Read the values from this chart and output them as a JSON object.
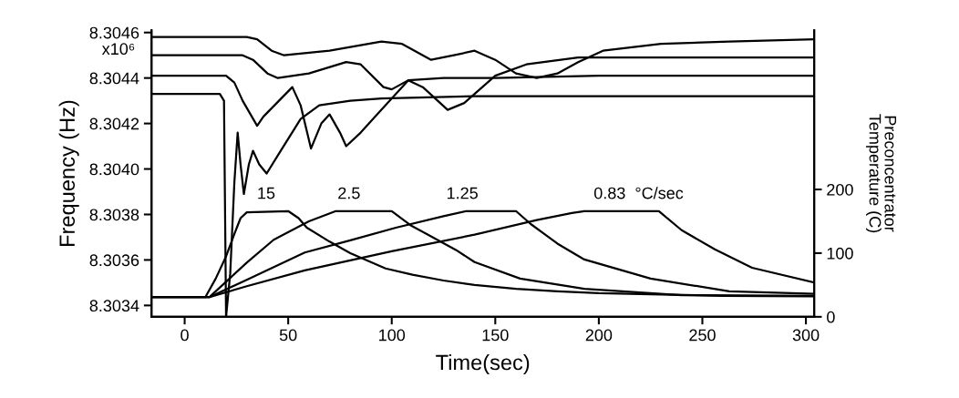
{
  "chart_data": {
    "type": "line",
    "xlabel": "Time(sec)",
    "ylabel": "Frequency (Hz)",
    "y2label": "Preconcentrator\nTemperature (C)",
    "xlim": [
      -16,
      304
    ],
    "xticks": [
      0,
      50,
      100,
      150,
      200,
      250,
      300
    ],
    "ylim": [
      8.30335,
      8.30461
    ],
    "yticks": [
      8.3034,
      8.3036,
      8.3038,
      {
        "value": 8.304,
        "label": "8.3040"
      },
      8.3042,
      8.3044,
      8.3046
    ],
    "y2lim": [
      0,
      450
    ],
    "y2ticks": [
      0,
      100,
      200
    ],
    "grid": false,
    "annotations": [
      "x10⁶",
      "15",
      "2.5",
      "1.25",
      "0.83  °C/sec"
    ],
    "series": [
      {
        "color": "#000000",
        "x": [
          -16,
          30,
          35,
          42,
          48,
          70,
          95,
          105,
          119,
          130,
          140,
          150,
          160,
          170,
          180,
          190,
          202,
          230,
          263,
          304
        ],
        "values": [
          8.30458,
          8.30458,
          8.30457,
          8.30452,
          8.3045,
          8.30452,
          8.30456,
          8.30455,
          8.30448,
          8.3045,
          8.30452,
          8.30448,
          8.30442,
          8.3044,
          8.30442,
          8.30447,
          8.30452,
          8.30455,
          8.30456,
          8.30457
        ]
      },
      {
        "color": "#000000",
        "x": [
          -16,
          28,
          33,
          40,
          45,
          60,
          78,
          85,
          96,
          100,
          108,
          115,
          127,
          135,
          150,
          165,
          190,
          250,
          304
        ],
        "values": [
          8.3045,
          8.3045,
          8.30448,
          8.30442,
          8.3044,
          8.30442,
          8.30447,
          8.30446,
          8.30436,
          8.30435,
          8.30439,
          8.30436,
          8.30426,
          8.30429,
          8.30441,
          8.30446,
          8.30449,
          8.30449,
          8.30449
        ]
      },
      {
        "color": "#000000",
        "x": [
          -16,
          20,
          24,
          28,
          35,
          38,
          52,
          56,
          61,
          66,
          70,
          75,
          78,
          85,
          95,
          108,
          125,
          150,
          200,
          304
        ],
        "values": [
          8.30441,
          8.30441,
          8.30438,
          8.3043,
          8.30419,
          8.30423,
          8.30436,
          8.30428,
          8.30409,
          8.3042,
          8.30424,
          8.30416,
          8.3041,
          8.30416,
          8.30426,
          8.30439,
          8.3044,
          8.3044,
          8.30441,
          8.30441
        ]
      },
      {
        "color": "#000000",
        "x": [
          -16,
          17,
          19,
          20,
          22,
          24,
          25.6,
          27,
          28.6,
          31,
          33,
          36,
          39.6,
          45,
          56,
          65,
          80,
          95,
          140,
          200,
          304
        ],
        "values": [
          8.30433,
          8.30433,
          8.3043,
          8.30335,
          8.30354,
          8.30394,
          8.30416,
          8.30402,
          8.30389,
          8.30402,
          8.30408,
          8.30402,
          8.30398,
          8.30406,
          8.30422,
          8.30428,
          8.3043,
          8.30431,
          8.30432,
          8.30432,
          8.30432
        ]
      },
      {
        "color": "#000000",
        "axis": "y2",
        "x": [
          -16,
          10,
          15,
          20,
          24,
          27,
          30,
          50,
          55,
          59,
          70,
          80,
          97,
          110,
          125,
          140,
          160,
          180,
          200,
          230,
          260,
          304
        ],
        "values": [
          31,
          31,
          60,
          95,
          130,
          155,
          164,
          166,
          155,
          140,
          118,
          100,
          76,
          66,
          57,
          50,
          44,
          40,
          37,
          35,
          33,
          32
        ]
      },
      {
        "color": "#000000",
        "axis": "y2",
        "x": [
          -16,
          12,
          20,
          30,
          43,
          60,
          73,
          100,
          109,
          131,
          140,
          162,
          193,
          240,
          304
        ],
        "values": [
          31,
          31,
          55,
          85,
          121,
          150,
          166,
          166,
          144,
          105,
          86,
          60,
          44,
          34,
          33
        ]
      },
      {
        "color": "#000000",
        "axis": "y2",
        "x": [
          -16,
          12,
          30,
          58,
          80,
          102,
          125,
          136,
          160,
          167,
          180,
          193,
          225,
          263,
          304
        ],
        "values": [
          31,
          31,
          58,
          101,
          120,
          140,
          158,
          166,
          166,
          146,
          115,
          90,
          60,
          40,
          36
        ]
      },
      {
        "color": "#000000",
        "axis": "y2",
        "x": [
          -16,
          12,
          30,
          58,
          100,
          140,
          170,
          187,
          193,
          229,
          240,
          256,
          274,
          304
        ],
        "values": [
          31,
          31,
          48,
          73,
          103,
          129,
          152,
          163,
          166,
          166,
          136,
          106,
          77,
          54
        ]
      }
    ]
  }
}
